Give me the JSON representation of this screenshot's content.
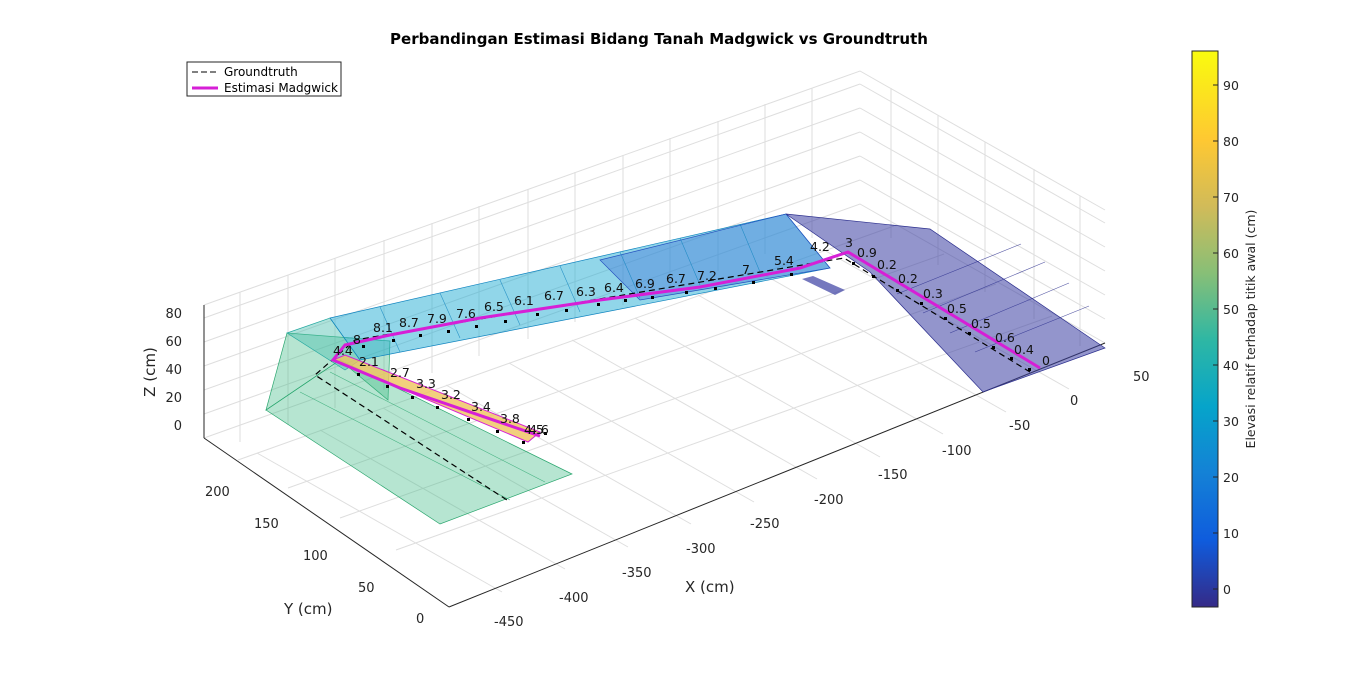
{
  "chart_data": {
    "type": "line",
    "title": "Perbandingan Estimasi Bidang Tanah Madgwick vs Groundtruth",
    "xlabel": "X (cm)",
    "ylabel": "Y (cm)",
    "zlabel": "Z (cm)",
    "xlim": [
      -450,
      50
    ],
    "ylim": [
      0,
      220
    ],
    "zlim": [
      0,
      85
    ],
    "x_ticks": [
      "-450",
      "-400",
      "-350",
      "-300",
      "-250",
      "-200",
      "-150",
      "-100",
      "-50",
      "0",
      "50"
    ],
    "y_ticks": [
      "0",
      "50",
      "100",
      "150",
      "200"
    ],
    "z_ticks": [
      "0",
      "20",
      "40",
      "60",
      "80"
    ],
    "grid": true,
    "legend_position": "top-left",
    "series": [
      {
        "name": "Groundtruth",
        "style": "dashed",
        "color": "#000000"
      },
      {
        "name": "Estimasi Madgwick",
        "style": "solid",
        "color": "#d61fd6"
      }
    ],
    "point_labels": [
      "0",
      "0.4",
      "0.6",
      "0.5",
      "0.5",
      "0.3",
      "0.2",
      "0.2",
      "0.9",
      "3",
      "4.2",
      "5.4",
      "7",
      "7.2",
      "6.7",
      "6.9",
      "6.4",
      "6.3",
      "6.7",
      "6.1",
      "6.5",
      "7.6",
      "7.9",
      "8.7",
      "8.1",
      "8",
      "4.4",
      "2.1",
      "2.7",
      "3.3",
      "3.2",
      "3.4",
      "3.8",
      "4.5",
      "4.6"
    ],
    "colorbar": {
      "label": "Elevasi relatif terhadap titik awal (cm)",
      "ticks": [
        "0",
        "10",
        "20",
        "30",
        "40",
        "50",
        "60",
        "70",
        "80",
        "90"
      ],
      "range": [
        -3.5,
        96
      ],
      "colormap": "parula"
    }
  }
}
